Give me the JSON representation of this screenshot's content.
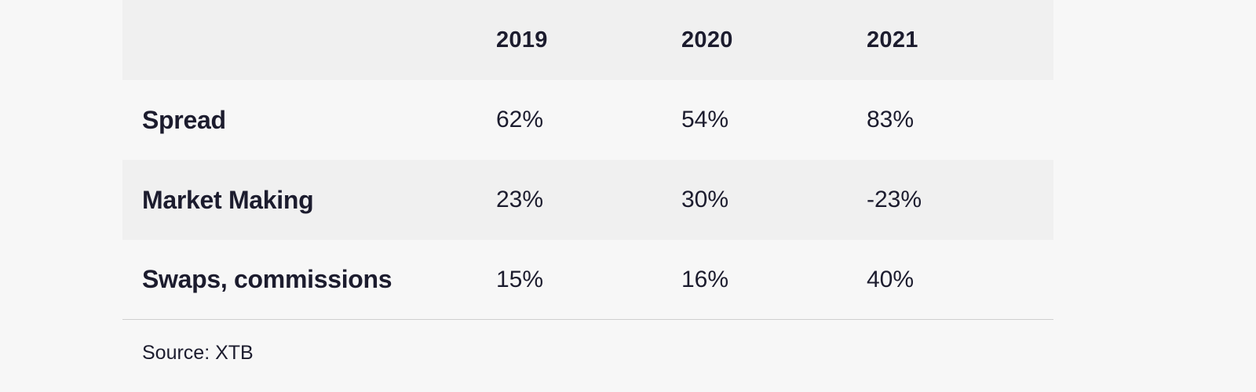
{
  "table": {
    "headers": [
      "",
      "2019",
      "2020",
      "2021"
    ],
    "rows": [
      {
        "label": "Spread",
        "values": [
          "62%",
          "54%",
          "83%"
        ]
      },
      {
        "label": "Market Making",
        "values": [
          "23%",
          "30%",
          "-23%"
        ]
      },
      {
        "label": "Swaps, commissions",
        "values": [
          "15%",
          "16%",
          "40%"
        ]
      }
    ]
  },
  "source": "Source: XTB"
}
